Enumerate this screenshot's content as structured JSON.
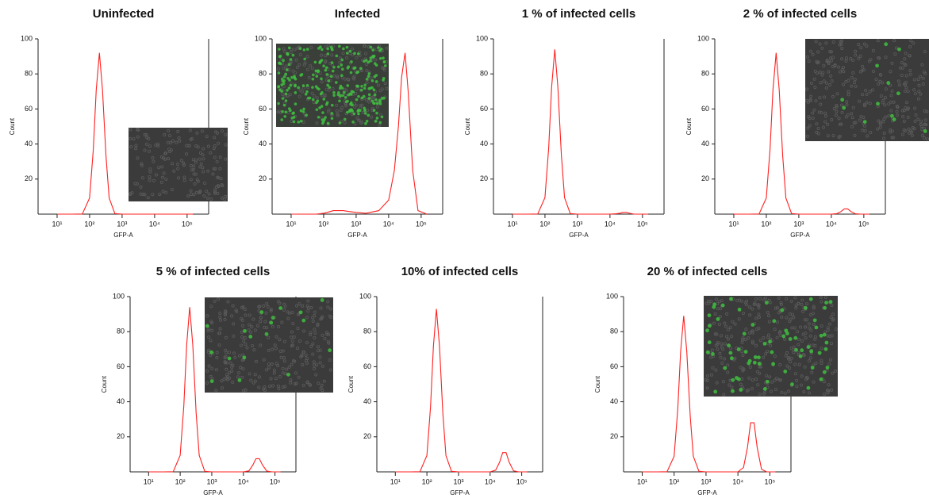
{
  "chart_data": [
    {
      "type": "line",
      "title": "Uninfected",
      "x_label": "GFP-A",
      "y_label": "Count",
      "log_x": true,
      "xlim": [
        2.6,
        460000
      ],
      "ylim": [
        0,
        100
      ],
      "yticks": [
        20,
        40,
        60,
        80,
        100
      ],
      "xticks": [
        {
          "value": 10,
          "label": "10¹"
        },
        {
          "value": 100,
          "label": "10²"
        },
        {
          "value": 1000,
          "label": "10³"
        },
        {
          "value": 10000,
          "label": "10⁴"
        },
        {
          "value": 100000,
          "label": "10⁵"
        }
      ],
      "x": [
        10,
        30,
        60,
        100,
        130,
        160,
        200,
        250,
        320,
        400,
        600,
        1000,
        2000,
        5000,
        10000,
        15000,
        20000,
        25000,
        32000,
        40000,
        55000,
        80000,
        150000
      ],
      "series": [
        {
          "color": "#ff2020",
          "values": [
            0,
            0,
            0.1,
            9.2,
            36.8,
            70.8,
            92,
            70.8,
            33.1,
            9.2,
            0.3,
            0,
            0,
            0,
            0,
            0,
            0,
            0,
            0,
            0,
            0,
            0,
            0
          ]
        }
      ]
    },
    {
      "type": "line",
      "title": "Infected",
      "x_label": "GFP-A",
      "y_label": "Count",
      "log_x": true,
      "xlim": [
        2.6,
        460000
      ],
      "ylim": [
        0,
        100
      ],
      "yticks": [
        20,
        40,
        60,
        80,
        100
      ],
      "xticks": [
        {
          "value": 10,
          "label": "10¹"
        },
        {
          "value": 100,
          "label": "10²"
        },
        {
          "value": 1000,
          "label": "10³"
        },
        {
          "value": 10000,
          "label": "10⁴"
        },
        {
          "value": 100000,
          "label": "10⁵"
        }
      ],
      "x": [
        10,
        30,
        60,
        100,
        130,
        160,
        200,
        250,
        320,
        400,
        600,
        1000,
        2000,
        5000,
        10000,
        15000,
        20000,
        25000,
        32000,
        40000,
        55000,
        80000,
        150000
      ],
      "series": [
        {
          "color": "#ff2020",
          "values": [
            0,
            0,
            0,
            0.5,
            1,
            1.5,
            2,
            2,
            2,
            2,
            1.5,
            1,
            0.5,
            2,
            8,
            25,
            50,
            78,
            92,
            70,
            25,
            2,
            0
          ]
        }
      ]
    },
    {
      "type": "line",
      "title": "1 % of infected cells",
      "x_label": "GFP-A",
      "y_label": "Count",
      "log_x": true,
      "xlim": [
        2.6,
        460000
      ],
      "ylim": [
        0,
        100
      ],
      "yticks": [
        20,
        40,
        60,
        80,
        100
      ],
      "xticks": [
        {
          "value": 10,
          "label": "10¹"
        },
        {
          "value": 100,
          "label": "10²"
        },
        {
          "value": 1000,
          "label": "10³"
        },
        {
          "value": 10000,
          "label": "10⁴"
        },
        {
          "value": 100000,
          "label": "10⁵"
        }
      ],
      "x": [
        10,
        30,
        60,
        100,
        130,
        160,
        200,
        250,
        320,
        400,
        600,
        1000,
        2000,
        5000,
        10000,
        15000,
        20000,
        25000,
        32000,
        40000,
        55000,
        80000,
        150000
      ],
      "series": [
        {
          "color": "#ff2020",
          "values": [
            0,
            0,
            0.1,
            9.4,
            37.6,
            72.4,
            94,
            72.4,
            33.8,
            9.4,
            0.3,
            0,
            0,
            0,
            0,
            0.2,
            0.5,
            1,
            1,
            0.5,
            0,
            0,
            0
          ]
        }
      ]
    },
    {
      "type": "line",
      "title": "2 % of infected cells",
      "x_label": "GFP-A",
      "y_label": "Count",
      "log_x": true,
      "xlim": [
        2.6,
        460000
      ],
      "ylim": [
        0,
        100
      ],
      "yticks": [
        20,
        40,
        60,
        80,
        100
      ],
      "xticks": [
        {
          "value": 10,
          "label": "10¹"
        },
        {
          "value": 100,
          "label": "10²"
        },
        {
          "value": 1000,
          "label": "10³"
        },
        {
          "value": 10000,
          "label": "10⁴"
        },
        {
          "value": 100000,
          "label": "10⁵"
        }
      ],
      "x": [
        10,
        30,
        60,
        100,
        130,
        160,
        200,
        250,
        320,
        400,
        600,
        1000,
        2000,
        5000,
        10000,
        15000,
        20000,
        25000,
        32000,
        40000,
        55000,
        80000,
        150000
      ],
      "series": [
        {
          "color": "#ff2020",
          "values": [
            0,
            0,
            0.1,
            9.2,
            36.8,
            70.8,
            92,
            70.8,
            33.1,
            9.2,
            0.3,
            0,
            0,
            0,
            0,
            0.3,
            1.5,
            3,
            3,
            1.5,
            0.2,
            0,
            0
          ]
        }
      ]
    },
    {
      "type": "line",
      "title": "5 % of infected cells",
      "x_label": "GFP-A",
      "y_label": "Count",
      "log_x": true,
      "xlim": [
        2.6,
        460000
      ],
      "ylim": [
        0,
        100
      ],
      "yticks": [
        20,
        40,
        60,
        80,
        100
      ],
      "xticks": [
        {
          "value": 10,
          "label": "10¹"
        },
        {
          "value": 100,
          "label": "10²"
        },
        {
          "value": 1000,
          "label": "10³"
        },
        {
          "value": 10000,
          "label": "10⁴"
        },
        {
          "value": 100000,
          "label": "10⁵"
        }
      ],
      "x": [
        10,
        30,
        60,
        100,
        130,
        160,
        200,
        250,
        320,
        400,
        600,
        1000,
        2000,
        5000,
        10000,
        15000,
        20000,
        25000,
        32000,
        40000,
        55000,
        80000,
        150000
      ],
      "series": [
        {
          "color": "#ff2020",
          "values": [
            0,
            0,
            0.1,
            9.4,
            37.6,
            72.4,
            94,
            72.4,
            33.8,
            9.4,
            0.3,
            0,
            0,
            0,
            0,
            0.6,
            4,
            7.5,
            7.5,
            4,
            0.4,
            0,
            0
          ]
        }
      ]
    },
    {
      "type": "line",
      "title": "10% of infected cells",
      "x_label": "GFP-A",
      "y_label": "Count",
      "log_x": true,
      "xlim": [
        2.6,
        460000
      ],
      "ylim": [
        0,
        100
      ],
      "yticks": [
        20,
        40,
        60,
        80,
        100
      ],
      "xticks": [
        {
          "value": 10,
          "label": "10¹"
        },
        {
          "value": 100,
          "label": "10²"
        },
        {
          "value": 1000,
          "label": "10³"
        },
        {
          "value": 10000,
          "label": "10⁴"
        },
        {
          "value": 100000,
          "label": "10⁵"
        }
      ],
      "x": [
        10,
        30,
        60,
        100,
        130,
        160,
        200,
        250,
        320,
        400,
        600,
        1000,
        2000,
        5000,
        10000,
        15000,
        20000,
        25000,
        32000,
        40000,
        55000,
        80000,
        150000
      ],
      "series": [
        {
          "color": "#ff2020",
          "values": [
            0,
            0,
            0.1,
            9.3,
            37.2,
            71.6,
            93,
            71.6,
            33.5,
            9.3,
            0.3,
            0,
            0,
            0,
            0,
            1,
            5.5,
            11,
            11,
            5.5,
            0.6,
            0,
            0
          ]
        }
      ]
    },
    {
      "type": "line",
      "title": "20 % of infected cells",
      "x_label": "GFP-A",
      "y_label": "Count",
      "log_x": true,
      "xlim": [
        2.6,
        460000
      ],
      "ylim": [
        0,
        100
      ],
      "yticks": [
        20,
        40,
        60,
        80,
        100
      ],
      "xticks": [
        {
          "value": 10,
          "label": "10¹"
        },
        {
          "value": 100,
          "label": "10²"
        },
        {
          "value": 1000,
          "label": "10³"
        },
        {
          "value": 10000,
          "label": "10⁴"
        },
        {
          "value": 100000,
          "label": "10⁵"
        }
      ],
      "x": [
        10,
        30,
        60,
        100,
        130,
        160,
        200,
        250,
        320,
        400,
        600,
        1000,
        2000,
        5000,
        10000,
        15000,
        20000,
        25000,
        32000,
        40000,
        55000,
        80000,
        150000
      ],
      "series": [
        {
          "color": "#ff2020",
          "values": [
            0,
            0,
            0.1,
            8.9,
            35.6,
            68.5,
            89,
            68.5,
            32,
            8.9,
            0.3,
            0,
            0,
            0,
            0,
            2.5,
            14,
            28,
            28,
            14,
            1.5,
            0,
            0
          ]
        }
      ]
    }
  ]
}
